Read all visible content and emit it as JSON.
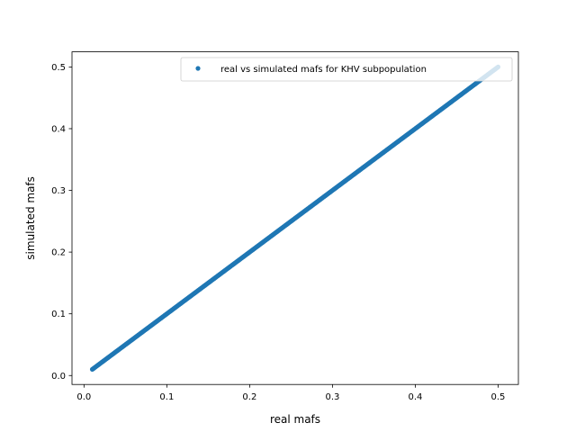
{
  "chart_data": {
    "type": "scatter",
    "title": "",
    "xlabel": "real mafs",
    "ylabel": "simulated mafs",
    "xlim": [
      -0.0145,
      0.5245
    ],
    "ylim": [
      -0.0145,
      0.5245
    ],
    "xticks": [
      0.0,
      0.1,
      0.2,
      0.3,
      0.4,
      0.5
    ],
    "yticks": [
      0.0,
      0.1,
      0.2,
      0.3,
      0.4,
      0.5
    ],
    "xtick_labels": [
      "0.0",
      "0.1",
      "0.2",
      "0.3",
      "0.4",
      "0.5"
    ],
    "ytick_labels": [
      "0.0",
      "0.1",
      "0.2",
      "0.3",
      "0.4",
      "0.5"
    ],
    "grid": false,
    "legend": {
      "position": "top-right",
      "entries": [
        "real vs simulated mafs for KHV subpopulation"
      ]
    },
    "series": [
      {
        "name": "real vs simulated mafs for KHV subpopulation",
        "color": "#1f77b4",
        "marker": "point",
        "x": [
          0.01,
          0.02,
          0.03,
          0.04,
          0.05,
          0.06,
          0.07,
          0.08,
          0.09,
          0.1,
          0.11,
          0.12,
          0.13,
          0.14,
          0.15,
          0.16,
          0.17,
          0.18,
          0.19,
          0.2,
          0.21,
          0.22,
          0.23,
          0.24,
          0.25,
          0.26,
          0.27,
          0.28,
          0.29,
          0.3,
          0.31,
          0.32,
          0.33,
          0.34,
          0.35,
          0.36,
          0.37,
          0.38,
          0.39,
          0.4,
          0.41,
          0.42,
          0.43,
          0.44,
          0.45,
          0.46,
          0.47,
          0.48,
          0.49,
          0.5
        ],
        "y": [
          0.01,
          0.02,
          0.03,
          0.04,
          0.05,
          0.06,
          0.07,
          0.08,
          0.09,
          0.1,
          0.11,
          0.12,
          0.13,
          0.14,
          0.15,
          0.16,
          0.17,
          0.18,
          0.19,
          0.2,
          0.21,
          0.22,
          0.23,
          0.24,
          0.25,
          0.26,
          0.27,
          0.28,
          0.29,
          0.3,
          0.31,
          0.32,
          0.33,
          0.34,
          0.35,
          0.36,
          0.37,
          0.38,
          0.39,
          0.4,
          0.41,
          0.42,
          0.43,
          0.44,
          0.45,
          0.46,
          0.47,
          0.48,
          0.49,
          0.5
        ]
      }
    ]
  }
}
